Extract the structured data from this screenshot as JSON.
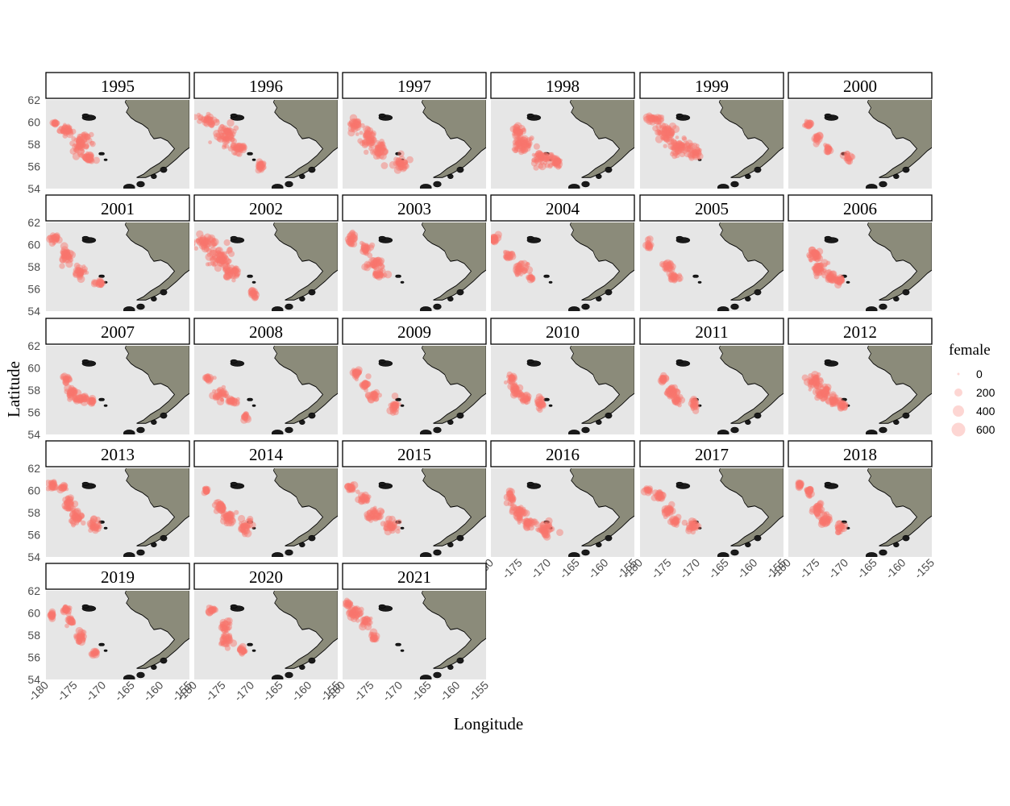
{
  "chart_data": {
    "type": "scatter",
    "facet_by": "year",
    "xlabel": "Longitude",
    "ylabel": "Latitude",
    "xlim": [
      -180,
      -155
    ],
    "ylim": [
      54,
      62
    ],
    "x_ticks": [
      -180,
      -175,
      -170,
      -165,
      -160,
      -155
    ],
    "y_ticks": [
      54,
      56,
      58,
      60,
      62
    ],
    "size_legend": {
      "title": "female",
      "breaks": [
        0,
        200,
        400,
        600
      ]
    },
    "colors": {
      "point": "#f8766d",
      "land": "#8b8b7a",
      "panel": "#e6e6e6",
      "strip": "#ffffff"
    },
    "panels": [
      {
        "year": "1995",
        "clusters": [
          [
            -176.5,
            59.3,
            1.3,
            0.5
          ],
          [
            -174.0,
            58.0,
            1.8,
            1.0
          ],
          [
            -172.5,
            56.8,
            1.0,
            0.5
          ],
          [
            -178.5,
            59.9,
            0.4,
            0.2
          ]
        ]
      },
      {
        "year": "1996",
        "clusters": [
          [
            -177.5,
            60.2,
            1.5,
            0.5
          ],
          [
            -174.5,
            58.8,
            1.8,
            0.9
          ],
          [
            -172.5,
            57.6,
            1.2,
            0.6
          ],
          [
            -168.5,
            56.0,
            0.8,
            0.5
          ]
        ]
      },
      {
        "year": "1997",
        "clusters": [
          [
            -178.0,
            59.8,
            1.0,
            0.6
          ],
          [
            -175.5,
            58.5,
            1.5,
            0.9
          ],
          [
            -173.5,
            57.5,
            1.2,
            0.7
          ],
          [
            -170.0,
            56.3,
            1.5,
            0.6
          ]
        ]
      },
      {
        "year": "1998",
        "clusters": [
          [
            -175.5,
            59.2,
            1.2,
            0.5
          ],
          [
            -174.5,
            57.9,
            2.0,
            0.8
          ],
          [
            -171.0,
            56.8,
            2.2,
            0.6
          ],
          [
            -168.5,
            56.3,
            1.0,
            0.4
          ]
        ]
      },
      {
        "year": "1999",
        "clusters": [
          [
            -177.5,
            60.3,
            1.6,
            0.4
          ],
          [
            -175.5,
            59.0,
            1.8,
            0.8
          ],
          [
            -173.0,
            57.8,
            2.0,
            0.8
          ],
          [
            -170.5,
            57.2,
            1.0,
            0.6
          ]
        ]
      },
      {
        "year": "2000",
        "clusters": [
          [
            -176.5,
            59.8,
            0.5,
            0.3
          ],
          [
            -175.0,
            58.5,
            0.6,
            0.4
          ],
          [
            -173.0,
            57.5,
            0.6,
            0.4
          ],
          [
            -169.5,
            56.8,
            0.6,
            0.5
          ]
        ]
      },
      {
        "year": "2001",
        "clusters": [
          [
            -178.5,
            60.5,
            1.0,
            0.4
          ],
          [
            -176.5,
            59.0,
            1.2,
            0.7
          ],
          [
            -174.0,
            57.5,
            1.2,
            0.6
          ],
          [
            -170.5,
            56.5,
            1.0,
            0.3
          ]
        ]
      },
      {
        "year": "2002",
        "clusters": [
          [
            -178.0,
            60.3,
            2.0,
            0.6
          ],
          [
            -175.5,
            58.8,
            2.0,
            0.9
          ],
          [
            -173.5,
            57.5,
            1.5,
            0.6
          ],
          [
            -169.5,
            55.5,
            0.6,
            0.4
          ]
        ]
      },
      {
        "year": "2003",
        "clusters": [
          [
            -178.5,
            60.5,
            0.8,
            0.6
          ],
          [
            -176.0,
            59.5,
            1.0,
            0.5
          ],
          [
            -174.5,
            58.3,
            1.2,
            0.6
          ],
          [
            -173.5,
            57.3,
            1.0,
            0.4
          ]
        ]
      },
      {
        "year": "2004",
        "clusters": [
          [
            -179.5,
            60.5,
            0.8,
            0.5
          ],
          [
            -177.0,
            59.0,
            0.8,
            0.4
          ],
          [
            -174.5,
            57.8,
            1.3,
            0.6
          ],
          [
            -173.0,
            57.0,
            0.6,
            0.3
          ]
        ]
      },
      {
        "year": "2005",
        "clusters": [
          [
            -178.5,
            60.0,
            0.5,
            0.4
          ],
          [
            -175.0,
            58.0,
            0.9,
            0.5
          ],
          [
            -174.0,
            57.0,
            0.8,
            0.4
          ]
        ]
      },
      {
        "year": "2006",
        "clusters": [
          [
            -175.5,
            59.0,
            1.2,
            0.7
          ],
          [
            -174.5,
            57.8,
            1.3,
            0.7
          ],
          [
            -172.5,
            57.0,
            1.3,
            0.5
          ],
          [
            -171.0,
            56.8,
            0.5,
            0.4
          ]
        ]
      },
      {
        "year": "2007",
        "clusters": [
          [
            -176.5,
            59.0,
            0.6,
            0.3
          ],
          [
            -175.5,
            57.8,
            1.0,
            0.5
          ],
          [
            -174.0,
            57.2,
            1.2,
            0.4
          ],
          [
            -172.0,
            57.0,
            0.4,
            0.3
          ]
        ]
      },
      {
        "year": "2008",
        "clusters": [
          [
            -177.5,
            59.0,
            0.6,
            0.3
          ],
          [
            -175.5,
            57.6,
            1.3,
            0.5
          ],
          [
            -173.5,
            57.0,
            1.0,
            0.4
          ],
          [
            -171.0,
            55.6,
            0.4,
            0.4
          ]
        ]
      },
      {
        "year": "2009",
        "clusters": [
          [
            -177.5,
            59.5,
            0.6,
            0.4
          ],
          [
            -176.0,
            58.5,
            0.9,
            0.5
          ],
          [
            -174.5,
            57.5,
            1.0,
            0.5
          ],
          [
            -171.0,
            56.5,
            0.8,
            0.6
          ]
        ]
      },
      {
        "year": "2010",
        "clusters": [
          [
            -176.5,
            59.0,
            0.6,
            0.4
          ],
          [
            -175.5,
            58.0,
            1.0,
            0.5
          ],
          [
            -174.0,
            57.2,
            1.0,
            0.4
          ],
          [
            -171.5,
            56.8,
            0.8,
            0.6
          ]
        ]
      },
      {
        "year": "2011",
        "clusters": [
          [
            -176.0,
            59.0,
            0.7,
            0.4
          ],
          [
            -174.5,
            57.8,
            1.1,
            0.6
          ],
          [
            -173.5,
            57.2,
            0.8,
            0.4
          ],
          [
            -170.5,
            56.8,
            0.5,
            0.6
          ]
        ]
      },
      {
        "year": "2012",
        "clusters": [
          [
            -175.5,
            58.8,
            1.2,
            0.8
          ],
          [
            -174.0,
            57.8,
            1.2,
            0.7
          ],
          [
            -172.0,
            57.0,
            1.0,
            0.5
          ],
          [
            -170.5,
            56.6,
            0.6,
            0.4
          ]
        ]
      },
      {
        "year": "2013",
        "clusters": [
          [
            -179.0,
            60.5,
            0.8,
            0.4
          ],
          [
            -177.0,
            60.3,
            0.6,
            0.3
          ],
          [
            -176.0,
            58.8,
            1.0,
            0.7
          ],
          [
            -174.5,
            57.5,
            1.2,
            0.6
          ],
          [
            -171.5,
            56.8,
            1.0,
            0.5
          ]
        ]
      },
      {
        "year": "2014",
        "clusters": [
          [
            -178.0,
            60.0,
            0.5,
            0.3
          ],
          [
            -175.5,
            58.5,
            1.0,
            0.6
          ],
          [
            -174.0,
            57.5,
            1.3,
            0.6
          ],
          [
            -171.0,
            56.8,
            1.2,
            0.6
          ]
        ]
      },
      {
        "year": "2015",
        "clusters": [
          [
            -178.5,
            60.3,
            0.8,
            0.4
          ],
          [
            -176.5,
            59.3,
            0.8,
            0.4
          ],
          [
            -174.5,
            57.8,
            1.3,
            0.6
          ],
          [
            -171.5,
            56.8,
            1.3,
            0.6
          ]
        ]
      },
      {
        "year": "2016",
        "clusters": [
          [
            -176.5,
            59.3,
            0.7,
            0.5
          ],
          [
            -175.0,
            58.0,
            1.2,
            0.7
          ],
          [
            -173.5,
            57.0,
            1.0,
            0.5
          ],
          [
            -170.5,
            56.5,
            1.3,
            0.7
          ]
        ]
      },
      {
        "year": "2017",
        "clusters": [
          [
            -178.5,
            60.0,
            0.6,
            0.3
          ],
          [
            -176.5,
            59.5,
            0.8,
            0.4
          ],
          [
            -175.0,
            58.2,
            1.0,
            0.6
          ],
          [
            -174.0,
            57.2,
            0.8,
            0.4
          ],
          [
            -171.0,
            56.8,
            1.3,
            0.5
          ]
        ]
      },
      {
        "year": "2018",
        "clusters": [
          [
            -178.0,
            60.5,
            0.4,
            0.3
          ],
          [
            -176.5,
            59.8,
            0.6,
            0.4
          ],
          [
            -175.0,
            58.3,
            0.9,
            0.6
          ],
          [
            -173.5,
            57.3,
            1.0,
            0.5
          ],
          [
            -171.0,
            56.6,
            0.8,
            0.4
          ]
        ]
      },
      {
        "year": "2019",
        "clusters": [
          [
            -179.0,
            59.8,
            0.3,
            0.3
          ],
          [
            -176.5,
            60.3,
            0.8,
            0.4
          ],
          [
            -175.5,
            59.3,
            0.8,
            0.5
          ],
          [
            -174.0,
            57.8,
            0.8,
            0.7
          ],
          [
            -171.5,
            56.4,
            0.6,
            0.3
          ]
        ]
      },
      {
        "year": "2020",
        "clusters": [
          [
            -177.0,
            60.3,
            0.7,
            0.3
          ],
          [
            -174.5,
            58.8,
            0.8,
            0.6
          ],
          [
            -174.5,
            57.5,
            1.0,
            0.6
          ],
          [
            -171.5,
            56.6,
            0.7,
            0.5
          ]
        ]
      },
      {
        "year": "2021",
        "clusters": [
          [
            -179.0,
            60.8,
            0.6,
            0.4
          ],
          [
            -178.0,
            60.0,
            1.3,
            0.7
          ],
          [
            -176.0,
            59.2,
            0.8,
            0.5
          ],
          [
            -174.5,
            57.8,
            0.6,
            0.5
          ]
        ]
      }
    ]
  }
}
